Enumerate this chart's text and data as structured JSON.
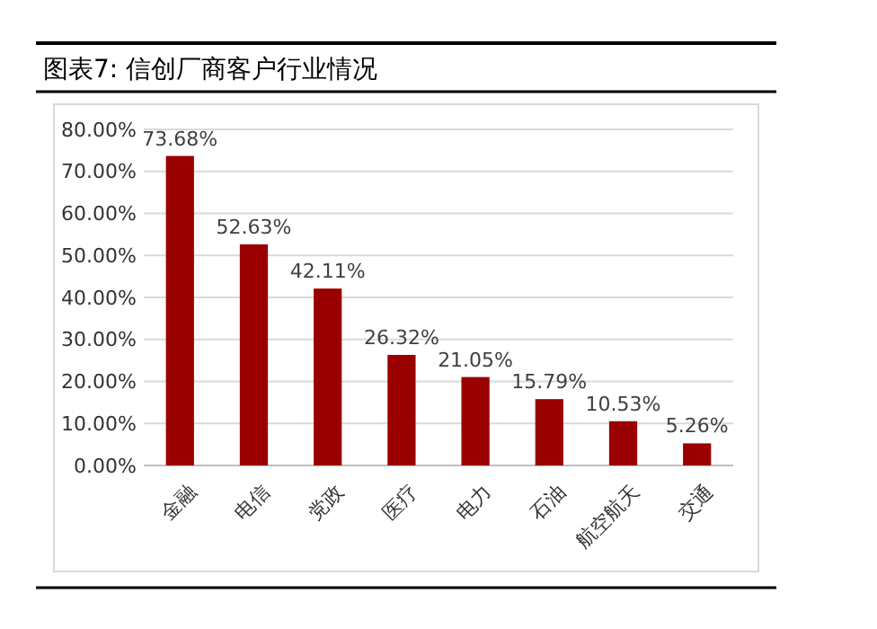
{
  "chart_data": {
    "type": "bar",
    "title": "图表7:  信创厂商客户行业情况",
    "categories": [
      "金融",
      "电信",
      "党政",
      "医疗",
      "电力",
      "石油",
      "航空航天",
      "交通"
    ],
    "values": [
      73.68,
      52.63,
      42.11,
      26.32,
      21.05,
      15.79,
      10.53,
      5.26
    ],
    "color": "#9b0000",
    "value_labels": [
      "73.68%",
      "52.63%",
      "42.11%",
      "26.32%",
      "21.05%",
      "15.79%",
      "10.53%",
      "5.26%"
    ],
    "ylim": [
      0,
      80
    ],
    "yticks": [
      {
        "value": 0,
        "label": "0.00%"
      },
      {
        "value": 10,
        "label": "10.00%"
      },
      {
        "value": 20,
        "label": "20.00%"
      },
      {
        "value": 30,
        "label": "30.00%"
      },
      {
        "value": 40,
        "label": "40.00%"
      },
      {
        "value": 50,
        "label": "50.00%"
      },
      {
        "value": 60,
        "label": "60.00%"
      },
      {
        "value": 70,
        "label": "70.00%"
      },
      {
        "value": 80,
        "label": "80.00%"
      }
    ],
    "grid": "y"
  }
}
